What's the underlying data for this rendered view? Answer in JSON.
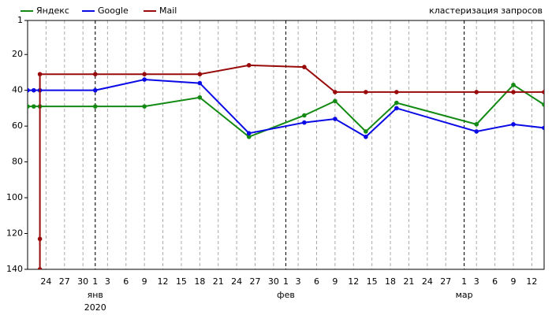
{
  "chart_data": {
    "type": "line",
    "title": "кластеризация запросов",
    "x": null,
    "y_inverted": true,
    "ylim": [
      1,
      140
    ],
    "yticks": [
      1,
      20,
      40,
      60,
      80,
      100,
      120,
      140
    ],
    "xlim": [
      "12-21",
      "03-14"
    ],
    "xticks": [
      {
        "value": "12-24",
        "label": "24"
      },
      {
        "value": "12-27",
        "label": "27"
      },
      {
        "value": "12-30",
        "label": "30"
      },
      {
        "value": "01-01",
        "label": "1"
      },
      {
        "value": "01-03",
        "label": "3"
      },
      {
        "value": "01-06",
        "label": "6"
      },
      {
        "value": "01-09",
        "label": "9"
      },
      {
        "value": "01-12",
        "label": "12"
      },
      {
        "value": "01-15",
        "label": "15"
      },
      {
        "value": "01-18",
        "label": "18"
      },
      {
        "value": "01-21",
        "label": "21"
      },
      {
        "value": "01-24",
        "label": "24"
      },
      {
        "value": "01-27",
        "label": "27"
      },
      {
        "value": "01-30",
        "label": "30"
      },
      {
        "value": "02-01",
        "label": "1"
      },
      {
        "value": "02-03",
        "label": "3"
      },
      {
        "value": "02-06",
        "label": "6"
      },
      {
        "value": "02-09",
        "label": "9"
      },
      {
        "value": "02-12",
        "label": "12"
      },
      {
        "value": "02-15",
        "label": "15"
      },
      {
        "value": "02-18",
        "label": "18"
      },
      {
        "value": "02-21",
        "label": "21"
      },
      {
        "value": "02-24",
        "label": "24"
      },
      {
        "value": "02-27",
        "label": "27"
      },
      {
        "value": "03-01",
        "label": "1"
      },
      {
        "value": "03-03",
        "label": "3"
      },
      {
        "value": "03-06",
        "label": "6"
      },
      {
        "value": "03-09",
        "label": "9"
      },
      {
        "value": "03-12",
        "label": "12"
      }
    ],
    "x_month_labels": [
      {
        "value": "01-01",
        "label": "янв"
      },
      {
        "value": "02-01",
        "label": "фев"
      },
      {
        "value": "03-01",
        "label": "мар"
      }
    ],
    "x_year_label": {
      "value": "01-01",
      "label": "2020"
    },
    "grid": true,
    "legend": "top-left",
    "series": [
      {
        "name": "Яндекс",
        "color": "#138a13",
        "x": [
          "12-21",
          "12-22",
          "12-23",
          "01-01",
          "01-09",
          "01-18",
          "01-26",
          "02-04",
          "02-09",
          "02-14",
          "02-19",
          "03-03",
          "03-09",
          "03-14"
        ],
        "values": [
          49,
          49,
          49,
          49,
          49,
          44,
          66,
          54,
          46,
          63,
          47,
          59,
          37,
          48
        ]
      },
      {
        "name": "Google",
        "color": "#0a0ae6",
        "x": [
          "12-21",
          "12-22",
          "12-23",
          "01-01",
          "01-09",
          "01-18",
          "01-26",
          "02-04",
          "02-09",
          "02-14",
          "02-19",
          "03-03",
          "03-09",
          "03-14"
        ],
        "values": [
          40,
          40,
          40,
          40,
          34,
          36,
          64,
          58,
          56,
          66,
          50,
          63,
          59,
          61
        ]
      },
      {
        "name": "Mail",
        "color": "#990a0a",
        "x": [
          "12-23",
          "12-23",
          "12-23",
          "01-01",
          "01-09",
          "01-18",
          "01-26",
          "02-04",
          "02-09",
          "02-14",
          "02-19",
          "03-03",
          "03-09",
          "03-14"
        ],
        "values": [
          140,
          123,
          31,
          31,
          31,
          31,
          26,
          27,
          41,
          41,
          41,
          41,
          41,
          41
        ]
      }
    ]
  }
}
